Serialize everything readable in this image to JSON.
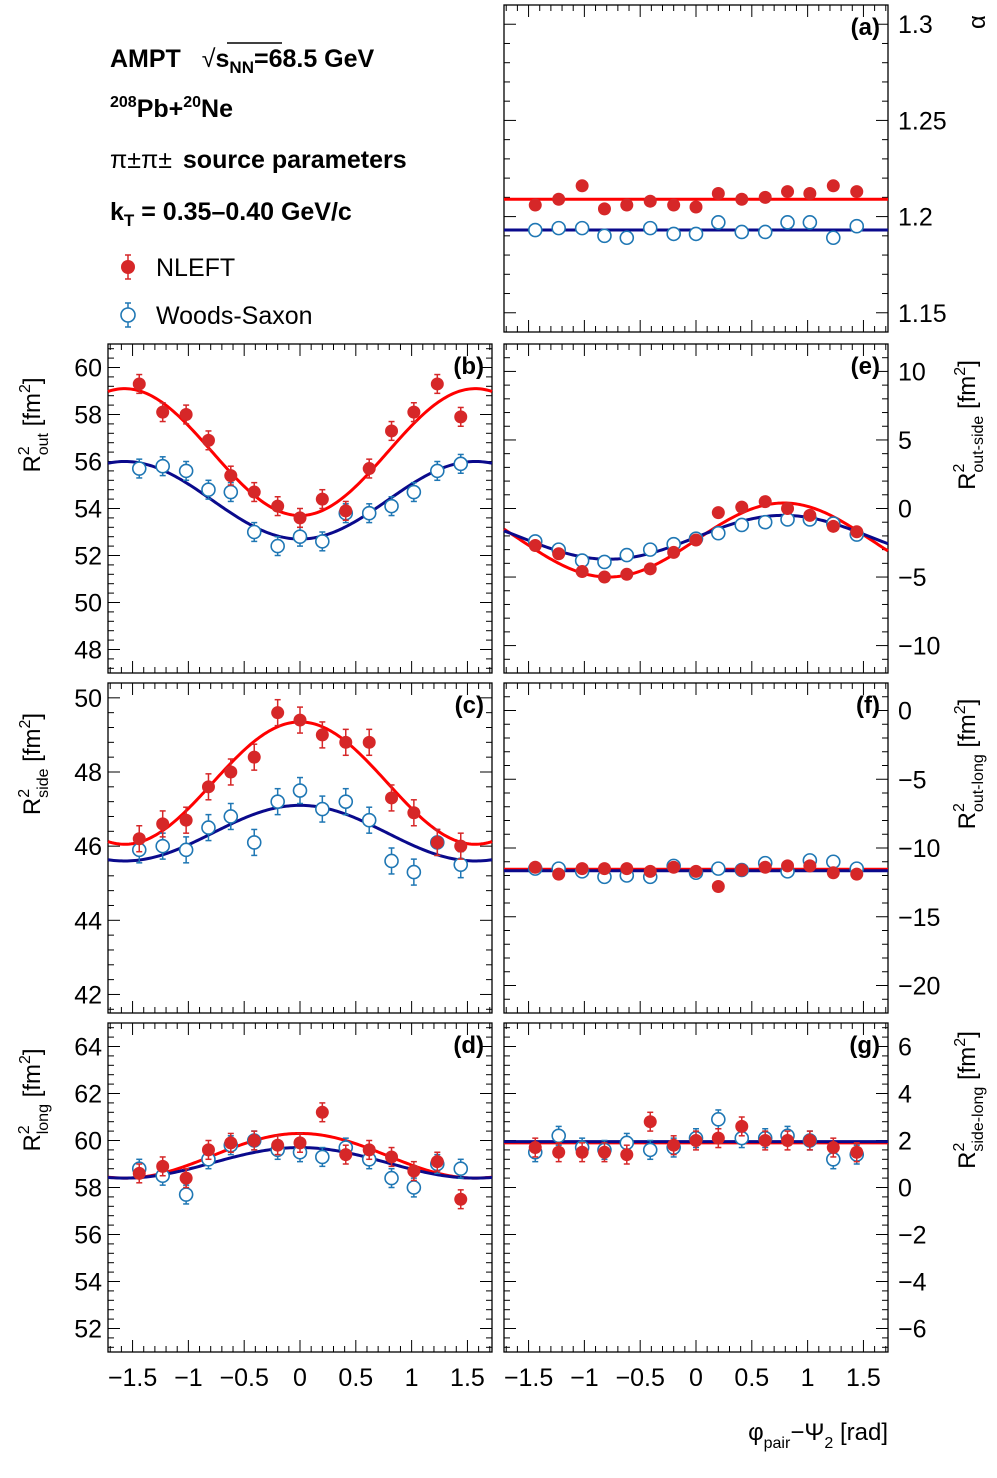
{
  "header": {
    "model": "AMPT",
    "energy_prefix": "s",
    "energy_subscript": "NN",
    "energy_value": "=68.5 GeV",
    "system_a_mass": "208",
    "system_a": "Pb+",
    "system_b_mass": "20",
    "system_b": "Ne",
    "pion_pair": "π±π±",
    "params_label": "source parameters",
    "kt_symbol": "k",
    "kt_sub": "T",
    "kt_range": " = 0.35–0.40 GeV/c"
  },
  "legend": {
    "nleft": "NLEFT",
    "woods_saxon": "Woods-Saxon"
  },
  "colors": {
    "nleft_points": "#d62728",
    "nleft_curve": "#ff0000",
    "ws_points": "#1f77b4",
    "ws_curve": "#0a0a8c"
  },
  "x_axis": {
    "label_phi": "φ",
    "label_pair": "pair",
    "label_minus_psi": "−Ψ",
    "label_two": "2",
    "label_unit": " [rad]",
    "ticks": [
      "−1.5",
      "−1",
      "−0.5",
      "0",
      "0.5",
      "1",
      "1.5"
    ]
  },
  "chart_data": [
    {
      "id": "a",
      "panel_label": "(a)",
      "type": "scatter",
      "ylabel": "α",
      "ylim": [
        1.14,
        1.31
      ],
      "yticks": [
        "1.15",
        "1.2",
        "1.25",
        "1.3"
      ],
      "x": [
        -1.44,
        -1.23,
        -1.02,
        -0.82,
        -0.62,
        -0.41,
        -0.2,
        0.0,
        0.2,
        0.41,
        0.62,
        0.82,
        1.02,
        1.23,
        1.44
      ],
      "series": [
        {
          "name": "NLEFT",
          "values": [
            1.206,
            1.209,
            1.216,
            1.204,
            1.206,
            1.208,
            1.206,
            1.205,
            1.212,
            1.209,
            1.21,
            1.213,
            1.212,
            1.216,
            1.213
          ],
          "errors": [
            0.002,
            0.002,
            0.002,
            0.002,
            0.002,
            0.002,
            0.002,
            0.002,
            0.002,
            0.002,
            0.002,
            0.002,
            0.002,
            0.002,
            0.002
          ],
          "fit": {
            "kind": "const",
            "c": 1.209
          }
        },
        {
          "name": "Woods-Saxon",
          "values": [
            1.193,
            1.194,
            1.194,
            1.19,
            1.189,
            1.194,
            1.191,
            1.191,
            1.197,
            1.192,
            1.192,
            1.197,
            1.197,
            1.189,
            1.195
          ],
          "errors": [
            0.002,
            0.002,
            0.002,
            0.002,
            0.002,
            0.002,
            0.002,
            0.002,
            0.002,
            0.002,
            0.002,
            0.002,
            0.002,
            0.002,
            0.002
          ],
          "fit": {
            "kind": "const",
            "c": 1.193
          }
        }
      ]
    },
    {
      "id": "b",
      "panel_label": "(b)",
      "type": "scatter",
      "ylabel_main": "R",
      "ylabel_sup": "2",
      "ylabel_sub": "out",
      "ylabel_unit": " [fm",
      "ylabel_unit_sup": "2",
      "ylabel_close": "]",
      "ylim": [
        47,
        61
      ],
      "yticks": [
        "48",
        "50",
        "52",
        "54",
        "56",
        "58",
        "60"
      ],
      "x": [
        -1.44,
        -1.23,
        -1.02,
        -0.82,
        -0.62,
        -0.41,
        -0.2,
        0.0,
        0.2,
        0.41,
        0.62,
        0.82,
        1.02,
        1.23,
        1.44
      ],
      "series": [
        {
          "name": "NLEFT",
          "values": [
            59.3,
            58.1,
            58.0,
            56.9,
            55.4,
            54.7,
            54.1,
            53.6,
            54.4,
            53.9,
            55.7,
            57.3,
            58.1,
            59.3,
            57.9
          ],
          "errors": [
            0.4,
            0.4,
            0.4,
            0.4,
            0.4,
            0.4,
            0.4,
            0.4,
            0.4,
            0.4,
            0.4,
            0.4,
            0.4,
            0.4,
            0.4
          ],
          "fit": {
            "kind": "cos2",
            "c": 56.4,
            "a": -2.7,
            "phase": 0
          }
        },
        {
          "name": "Woods-Saxon",
          "values": [
            55.7,
            55.8,
            55.6,
            54.8,
            54.7,
            53.0,
            52.4,
            52.8,
            52.6,
            53.8,
            53.8,
            54.1,
            54.7,
            55.6,
            55.9
          ],
          "errors": [
            0.4,
            0.4,
            0.4,
            0.4,
            0.4,
            0.4,
            0.4,
            0.4,
            0.4,
            0.4,
            0.4,
            0.4,
            0.4,
            0.4,
            0.4
          ],
          "fit": {
            "kind": "cos2",
            "c": 54.35,
            "a": -1.65,
            "phase": 0
          }
        }
      ]
    },
    {
      "id": "c",
      "panel_label": "(c)",
      "type": "scatter",
      "ylabel_main": "R",
      "ylabel_sup": "2",
      "ylabel_sub": "side",
      "ylabel_unit": " [fm",
      "ylabel_unit_sup": "2",
      "ylabel_close": "]",
      "ylim": [
        41.5,
        50.4
      ],
      "yticks": [
        "42",
        "44",
        "46",
        "48",
        "50"
      ],
      "x": [
        -1.44,
        -1.23,
        -1.02,
        -0.82,
        -0.62,
        -0.41,
        -0.2,
        0.0,
        0.2,
        0.41,
        0.62,
        0.82,
        1.02,
        1.23,
        1.44
      ],
      "series": [
        {
          "name": "NLEFT",
          "values": [
            46.2,
            46.6,
            46.7,
            47.6,
            48.0,
            48.4,
            49.6,
            49.4,
            49.0,
            48.8,
            48.8,
            47.3,
            46.9,
            46.1,
            46.0
          ],
          "errors": [
            0.35,
            0.35,
            0.35,
            0.35,
            0.35,
            0.35,
            0.35,
            0.35,
            0.35,
            0.35,
            0.35,
            0.35,
            0.35,
            0.35,
            0.35
          ],
          "fit": {
            "kind": "cos2",
            "c": 47.7,
            "a": 1.65,
            "phase": 0
          }
        },
        {
          "name": "Woods-Saxon",
          "values": [
            45.9,
            46.0,
            45.9,
            46.5,
            46.8,
            46.1,
            47.2,
            47.5,
            47.0,
            47.2,
            46.7,
            45.6,
            45.3,
            46.1,
            45.5
          ],
          "errors": [
            0.35,
            0.35,
            0.35,
            0.35,
            0.35,
            0.35,
            0.35,
            0.35,
            0.35,
            0.35,
            0.35,
            0.35,
            0.35,
            0.35,
            0.35
          ],
          "fit": {
            "kind": "cos2",
            "c": 46.35,
            "a": 0.75,
            "phase": 0
          }
        }
      ]
    },
    {
      "id": "d",
      "panel_label": "(d)",
      "type": "scatter",
      "ylabel_main": "R",
      "ylabel_sup": "2",
      "ylabel_sub": "long",
      "ylabel_unit": " [fm",
      "ylabel_unit_sup": "2",
      "ylabel_close": "]",
      "ylim": [
        51,
        65
      ],
      "yticks": [
        "52",
        "54",
        "56",
        "58",
        "60",
        "62",
        "64"
      ],
      "x": [
        -1.44,
        -1.23,
        -1.02,
        -0.82,
        -0.62,
        -0.41,
        -0.2,
        0.0,
        0.2,
        0.41,
        0.62,
        0.82,
        1.02,
        1.23,
        1.44
      ],
      "series": [
        {
          "name": "NLEFT",
          "values": [
            58.6,
            58.9,
            58.4,
            59.6,
            59.9,
            60.0,
            59.8,
            59.9,
            61.2,
            59.4,
            59.6,
            59.3,
            58.7,
            59.1,
            57.5
          ],
          "errors": [
            0.4,
            0.4,
            0.4,
            0.4,
            0.4,
            0.4,
            0.4,
            0.4,
            0.4,
            0.4,
            0.4,
            0.4,
            0.4,
            0.4,
            0.4
          ],
          "fit": {
            "kind": "cos2",
            "c": 59.35,
            "a": 0.95,
            "phase": 0
          }
        },
        {
          "name": "Woods-Saxon",
          "values": [
            58.8,
            58.5,
            57.7,
            59.2,
            59.8,
            60.0,
            59.6,
            59.5,
            59.3,
            59.7,
            59.2,
            58.4,
            58.0,
            59.0,
            58.8
          ],
          "errors": [
            0.4,
            0.4,
            0.4,
            0.4,
            0.4,
            0.4,
            0.4,
            0.4,
            0.4,
            0.4,
            0.4,
            0.4,
            0.4,
            0.4,
            0.4
          ],
          "fit": {
            "kind": "cos2",
            "c": 59.05,
            "a": 0.65,
            "phase": 0
          }
        }
      ]
    },
    {
      "id": "e",
      "panel_label": "(e)",
      "type": "scatter",
      "ylabel_main": "R",
      "ylabel_sup": "2",
      "ylabel_sub": "out-side",
      "ylabel_unit": " [fm",
      "ylabel_unit_sup": "2",
      "ylabel_close": "]",
      "ylim": [
        -12,
        12
      ],
      "yticks": [
        "−10",
        "−5",
        "0",
        "5",
        "10"
      ],
      "ytick_values": [
        -10,
        -5,
        0,
        5,
        10
      ],
      "x": [
        -1.44,
        -1.23,
        -1.02,
        -0.82,
        -0.62,
        -0.41,
        -0.2,
        0.0,
        0.2,
        0.41,
        0.62,
        0.82,
        1.02,
        1.23,
        1.44
      ],
      "series": [
        {
          "name": "NLEFT",
          "values": [
            -2.7,
            -3.3,
            -4.6,
            -5.0,
            -4.8,
            -4.4,
            -3.2,
            -2.3,
            -0.3,
            0.1,
            0.5,
            0.0,
            -0.5,
            -1.3,
            -1.7
          ],
          "errors": [
            0.3,
            0.3,
            0.3,
            0.3,
            0.3,
            0.3,
            0.3,
            0.3,
            0.3,
            0.3,
            0.3,
            0.3,
            0.3,
            0.3,
            0.3
          ],
          "fit": {
            "kind": "sin2",
            "c": -2.3,
            "a": 2.7
          }
        },
        {
          "name": "Woods-Saxon",
          "values": [
            -2.4,
            -3.0,
            -3.8,
            -3.9,
            -3.4,
            -3.0,
            -2.6,
            -2.2,
            -1.8,
            -1.2,
            -1.0,
            -0.8,
            -0.8,
            -1.1,
            -1.9
          ],
          "errors": [
            0.3,
            0.3,
            0.3,
            0.3,
            0.3,
            0.3,
            0.3,
            0.3,
            0.3,
            0.3,
            0.3,
            0.3,
            0.3,
            0.3,
            0.3
          ],
          "fit": {
            "kind": "sin2",
            "c": -2.1,
            "a": 1.6
          }
        }
      ]
    },
    {
      "id": "f",
      "panel_label": "(f)",
      "type": "scatter",
      "ylabel_main": "R",
      "ylabel_sup": "2",
      "ylabel_sub": "out-long",
      "ylabel_unit": " [fm",
      "ylabel_unit_sup": "2",
      "ylabel_close": "]",
      "ylim": [
        -22,
        2
      ],
      "yticks": [
        "−20",
        "−15",
        "−10",
        "−5",
        "0"
      ],
      "ytick_values": [
        -20,
        -15,
        -10,
        -5,
        0
      ],
      "x": [
        -1.44,
        -1.23,
        -1.02,
        -0.82,
        -0.62,
        -0.41,
        -0.2,
        0.0,
        0.2,
        0.41,
        0.62,
        0.82,
        1.02,
        1.23,
        1.44
      ],
      "series": [
        {
          "name": "NLEFT",
          "values": [
            -11.4,
            -11.9,
            -11.5,
            -11.5,
            -11.5,
            -11.7,
            -11.4,
            -11.7,
            -12.8,
            -11.6,
            -11.4,
            -11.3,
            -11.3,
            -11.8,
            -11.9
          ],
          "errors": [
            0.2,
            0.2,
            0.2,
            0.2,
            0.2,
            0.2,
            0.2,
            0.2,
            0.2,
            0.2,
            0.2,
            0.2,
            0.2,
            0.2,
            0.2
          ],
          "fit": {
            "kind": "const",
            "c": -11.55
          }
        },
        {
          "name": "Woods-Saxon",
          "values": [
            -11.5,
            -11.5,
            -11.7,
            -12.1,
            -12.0,
            -12.1,
            -11.3,
            -11.8,
            -11.5,
            -11.6,
            -11.1,
            -11.7,
            -10.9,
            -11.0,
            -11.5
          ],
          "errors": [
            0.2,
            0.2,
            0.2,
            0.2,
            0.2,
            0.2,
            0.2,
            0.2,
            0.2,
            0.2,
            0.2,
            0.2,
            0.2,
            0.2,
            0.2
          ],
          "fit": {
            "kind": "const",
            "c": -11.65
          }
        }
      ]
    },
    {
      "id": "g",
      "panel_label": "(g)",
      "type": "scatter",
      "ylabel_main": "R",
      "ylabel_sup": "2",
      "ylabel_sub": "side-long",
      "ylabel_unit": " [fm",
      "ylabel_unit_sup": "2",
      "ylabel_close": "]",
      "ylim": [
        -7,
        7
      ],
      "yticks": [
        "−6",
        "−4",
        "−2",
        "0",
        "2",
        "4",
        "6"
      ],
      "ytick_values": [
        -6,
        -4,
        -2,
        0,
        2,
        4,
        6
      ],
      "x": [
        -1.44,
        -1.23,
        -1.02,
        -0.82,
        -0.62,
        -0.41,
        -0.2,
        0.0,
        0.2,
        0.41,
        0.62,
        0.82,
        1.02,
        1.23,
        1.44
      ],
      "series": [
        {
          "name": "NLEFT",
          "values": [
            1.7,
            1.5,
            1.5,
            1.5,
            1.4,
            2.8,
            1.8,
            2.0,
            2.1,
            2.6,
            2.0,
            2.0,
            2.0,
            1.7,
            1.5
          ],
          "errors": [
            0.4,
            0.4,
            0.4,
            0.4,
            0.4,
            0.4,
            0.4,
            0.4,
            0.4,
            0.4,
            0.4,
            0.4,
            0.4,
            0.4,
            0.4
          ],
          "fit": {
            "kind": "const",
            "c": 1.9
          }
        },
        {
          "name": "Woods-Saxon",
          "values": [
            1.5,
            2.2,
            1.7,
            1.6,
            1.9,
            1.6,
            1.7,
            2.1,
            2.9,
            2.1,
            2.1,
            2.2,
            2.0,
            1.2,
            1.4
          ],
          "errors": [
            0.4,
            0.4,
            0.4,
            0.4,
            0.4,
            0.4,
            0.4,
            0.4,
            0.4,
            0.4,
            0.4,
            0.4,
            0.4,
            0.4,
            0.4
          ],
          "fit": {
            "kind": "const",
            "c": 1.95
          }
        }
      ]
    }
  ]
}
